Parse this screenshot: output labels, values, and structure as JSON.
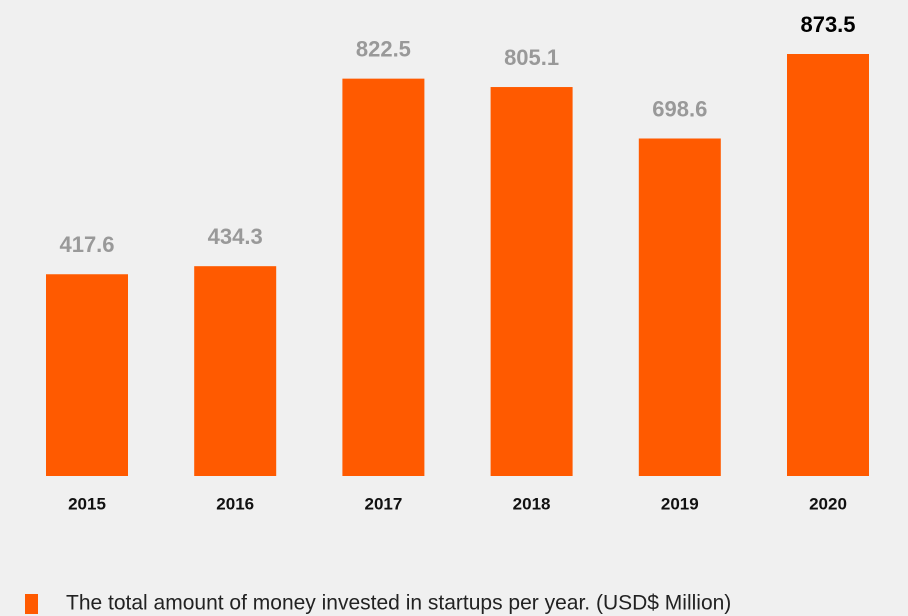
{
  "chart_data": {
    "type": "bar",
    "categories": [
      "2015",
      "2016",
      "2017",
      "2018",
      "2019",
      "2020"
    ],
    "series": [
      {
        "name": "The total amount of money invested in startups per year. (USD$ Million)",
        "color": "#ff5a00",
        "values": [
          417.6,
          434.3,
          822.5,
          805.1,
          698.6,
          873.5
        ]
      }
    ],
    "value_label_colors": [
      "#999999",
      "#999999",
      "#999999",
      "#999999",
      "#999999",
      "#000000"
    ],
    "legend": "bottom-left"
  }
}
